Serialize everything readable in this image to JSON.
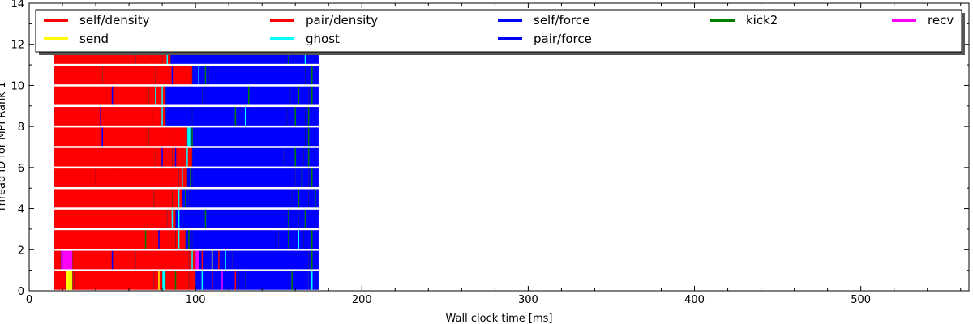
{
  "chart_data": {
    "type": "bar",
    "orientation": "horizontal-timeline",
    "xlabel": "Wall clock time [ms]",
    "ylabel": "Thread ID for MPI Rank 1",
    "xlim": [
      0,
      565
    ],
    "ylim": [
      0,
      14
    ],
    "x_ticks": [
      "0",
      "100",
      "200",
      "300",
      "400",
      "500"
    ],
    "y_ticks": [
      "0",
      "2",
      "4",
      "6",
      "8",
      "10",
      "12",
      "14"
    ],
    "legend_position": "top",
    "legend": [
      {
        "label": "self/density",
        "color": "#ff0000"
      },
      {
        "label": "pair/density",
        "color": "#ff0000"
      },
      {
        "label": "self/force",
        "color": "#0000ff"
      },
      {
        "label": "kick2",
        "color": "#008000"
      },
      {
        "label": "recv",
        "color": "#ff00ff"
      },
      {
        "label": "send",
        "color": "#ffff00"
      },
      {
        "label": "ghost",
        "color": "#00ffff"
      },
      {
        "label": "pair/force",
        "color": "#0000ff"
      }
    ],
    "colors": {
      "red": "#ff0000",
      "blue": "#0000ff",
      "green": "#008000",
      "cyan": "#00ffff",
      "yellow": "#ffff00",
      "magenta": "#ff00ff"
    },
    "threads": [
      {
        "id": 0,
        "segments": [
          [
            15,
            22,
            "red"
          ],
          [
            22,
            26,
            "yellow"
          ],
          [
            26,
            27,
            "red"
          ],
          [
            27,
            75,
            "red"
          ],
          [
            75,
            80,
            "red"
          ],
          [
            80,
            82,
            "cyan"
          ],
          [
            82,
            96,
            "red"
          ],
          [
            96,
            100,
            "red"
          ],
          [
            100,
            126,
            "blue"
          ],
          [
            126,
            130,
            "blue"
          ],
          [
            130,
            158,
            "blue"
          ],
          [
            158,
            168,
            "blue"
          ],
          [
            168,
            174,
            "blue"
          ]
        ]
      },
      {
        "id": 1,
        "segments": [
          [
            15,
            19,
            "red"
          ],
          [
            19,
            20,
            "magenta"
          ],
          [
            20,
            26,
            "magenta"
          ],
          [
            26,
            50,
            "red"
          ],
          [
            50,
            64,
            "red"
          ],
          [
            64,
            96,
            "red"
          ],
          [
            96,
            100,
            "red"
          ],
          [
            100,
            102,
            "magenta"
          ],
          [
            102,
            122,
            "blue"
          ],
          [
            122,
            168,
            "blue"
          ],
          [
            168,
            174,
            "blue"
          ]
        ]
      },
      {
        "id": 2,
        "segments": [
          [
            15,
            66,
            "red"
          ],
          [
            66,
            88,
            "red"
          ],
          [
            88,
            94,
            "red"
          ],
          [
            94,
            98,
            "blue"
          ],
          [
            98,
            150,
            "blue"
          ],
          [
            150,
            165,
            "blue"
          ],
          [
            165,
            174,
            "blue"
          ]
        ]
      },
      {
        "id": 3,
        "segments": [
          [
            15,
            83,
            "red"
          ],
          [
            83,
            88,
            "red"
          ],
          [
            88,
            92,
            "blue"
          ],
          [
            92,
            106,
            "blue"
          ],
          [
            106,
            154,
            "blue"
          ],
          [
            154,
            162,
            "blue"
          ],
          [
            162,
            174,
            "blue"
          ]
        ]
      },
      {
        "id": 4,
        "segments": [
          [
            15,
            75,
            "red"
          ],
          [
            75,
            86,
            "red"
          ],
          [
            86,
            92,
            "red"
          ],
          [
            92,
            96,
            "blue"
          ],
          [
            96,
            158,
            "blue"
          ],
          [
            158,
            168,
            "blue"
          ],
          [
            168,
            174,
            "blue"
          ]
        ]
      },
      {
        "id": 5,
        "segments": [
          [
            15,
            40,
            "red"
          ],
          [
            40,
            53,
            "red"
          ],
          [
            53,
            90,
            "red"
          ],
          [
            90,
            95,
            "red"
          ],
          [
            95,
            98,
            "blue"
          ],
          [
            98,
            160,
            "blue"
          ],
          [
            160,
            168,
            "blue"
          ],
          [
            168,
            174,
            "blue"
          ]
        ]
      },
      {
        "id": 6,
        "segments": [
          [
            15,
            76,
            "red"
          ],
          [
            76,
            86,
            "red"
          ],
          [
            86,
            92,
            "red"
          ],
          [
            92,
            98,
            "red"
          ],
          [
            98,
            153,
            "blue"
          ],
          [
            153,
            165,
            "blue"
          ],
          [
            165,
            174,
            "blue"
          ]
        ]
      },
      {
        "id": 7,
        "segments": [
          [
            15,
            44,
            "red"
          ],
          [
            44,
            72,
            "red"
          ],
          [
            72,
            84,
            "red"
          ],
          [
            84,
            95,
            "red"
          ],
          [
            95,
            97,
            "cyan"
          ],
          [
            97,
            166,
            "blue"
          ],
          [
            166,
            174,
            "blue"
          ]
        ]
      },
      {
        "id": 8,
        "segments": [
          [
            15,
            43,
            "red"
          ],
          [
            43,
            74,
            "red"
          ],
          [
            74,
            82,
            "red"
          ],
          [
            82,
            98,
            "blue"
          ],
          [
            98,
            155,
            "blue"
          ],
          [
            155,
            166,
            "blue"
          ],
          [
            166,
            174,
            "blue"
          ]
        ]
      },
      {
        "id": 9,
        "segments": [
          [
            15,
            48,
            "red"
          ],
          [
            48,
            72,
            "red"
          ],
          [
            72,
            82,
            "red"
          ],
          [
            82,
            104,
            "blue"
          ],
          [
            104,
            157,
            "blue"
          ],
          [
            157,
            168,
            "blue"
          ],
          [
            168,
            174,
            "blue"
          ]
        ]
      },
      {
        "id": 10,
        "segments": [
          [
            15,
            44,
            "red"
          ],
          [
            44,
            76,
            "red"
          ],
          [
            76,
            84,
            "red"
          ],
          [
            84,
            98,
            "red"
          ],
          [
            98,
            108,
            "blue"
          ],
          [
            108,
            166,
            "blue"
          ],
          [
            166,
            174,
            "blue"
          ]
        ]
      },
      {
        "id": 11,
        "segments": [
          [
            15,
            64,
            "red"
          ],
          [
            64,
            80,
            "red"
          ],
          [
            80,
            85,
            "red"
          ],
          [
            85,
            128,
            "blue"
          ],
          [
            128,
            154,
            "blue"
          ],
          [
            154,
            166,
            "blue"
          ],
          [
            166,
            174,
            "blue"
          ]
        ]
      }
    ],
    "markers": [
      {
        "thread": 0,
        "x": 78,
        "color": "yellow"
      },
      {
        "thread": 0,
        "x": 88,
        "color": "green"
      },
      {
        "thread": 0,
        "x": 104,
        "color": "cyan"
      },
      {
        "thread": 0,
        "x": 110,
        "color": "red"
      },
      {
        "thread": 0,
        "x": 116,
        "color": "magenta"
      },
      {
        "thread": 0,
        "x": 124,
        "color": "red"
      },
      {
        "thread": 0,
        "x": 158,
        "color": "green"
      },
      {
        "thread": 0,
        "x": 170,
        "color": "cyan"
      },
      {
        "thread": 1,
        "x": 50,
        "color": "blue"
      },
      {
        "thread": 1,
        "x": 98,
        "color": "cyan"
      },
      {
        "thread": 1,
        "x": 104,
        "color": "red"
      },
      {
        "thread": 1,
        "x": 110,
        "color": "yellow"
      },
      {
        "thread": 1,
        "x": 114,
        "color": "red"
      },
      {
        "thread": 1,
        "x": 118,
        "color": "cyan"
      },
      {
        "thread": 1,
        "x": 170,
        "color": "green"
      },
      {
        "thread": 2,
        "x": 70,
        "color": "green"
      },
      {
        "thread": 2,
        "x": 78,
        "color": "blue"
      },
      {
        "thread": 2,
        "x": 90,
        "color": "cyan"
      },
      {
        "thread": 2,
        "x": 96,
        "color": "green"
      },
      {
        "thread": 2,
        "x": 156,
        "color": "green"
      },
      {
        "thread": 2,
        "x": 162,
        "color": "cyan"
      },
      {
        "thread": 2,
        "x": 170,
        "color": "green"
      },
      {
        "thread": 3,
        "x": 86,
        "color": "cyan"
      },
      {
        "thread": 3,
        "x": 90,
        "color": "cyan"
      },
      {
        "thread": 3,
        "x": 106,
        "color": "green"
      },
      {
        "thread": 3,
        "x": 156,
        "color": "green"
      },
      {
        "thread": 3,
        "x": 166,
        "color": "green"
      },
      {
        "thread": 4,
        "x": 90,
        "color": "cyan"
      },
      {
        "thread": 4,
        "x": 94,
        "color": "green"
      },
      {
        "thread": 4,
        "x": 162,
        "color": "green"
      },
      {
        "thread": 4,
        "x": 172,
        "color": "green"
      },
      {
        "thread": 5,
        "x": 53,
        "color": "red"
      },
      {
        "thread": 5,
        "x": 92,
        "color": "cyan"
      },
      {
        "thread": 5,
        "x": 97,
        "color": "green"
      },
      {
        "thread": 5,
        "x": 164,
        "color": "green"
      },
      {
        "thread": 5,
        "x": 170,
        "color": "green"
      },
      {
        "thread": 6,
        "x": 80,
        "color": "blue"
      },
      {
        "thread": 6,
        "x": 88,
        "color": "blue"
      },
      {
        "thread": 6,
        "x": 95,
        "color": "cyan"
      },
      {
        "thread": 6,
        "x": 160,
        "color": "green"
      },
      {
        "thread": 6,
        "x": 168,
        "color": "green"
      },
      {
        "thread": 7,
        "x": 44,
        "color": "blue"
      },
      {
        "thread": 7,
        "x": 98,
        "color": "green"
      },
      {
        "thread": 7,
        "x": 168,
        "color": "green"
      },
      {
        "thread": 8,
        "x": 43,
        "color": "blue"
      },
      {
        "thread": 8,
        "x": 80,
        "color": "cyan"
      },
      {
        "thread": 8,
        "x": 124,
        "color": "green"
      },
      {
        "thread": 8,
        "x": 130,
        "color": "cyan"
      },
      {
        "thread": 8,
        "x": 160,
        "color": "green"
      },
      {
        "thread": 8,
        "x": 168,
        "color": "green"
      },
      {
        "thread": 9,
        "x": 50,
        "color": "blue"
      },
      {
        "thread": 9,
        "x": 76,
        "color": "cyan"
      },
      {
        "thread": 9,
        "x": 80,
        "color": "cyan"
      },
      {
        "thread": 9,
        "x": 132,
        "color": "green"
      },
      {
        "thread": 9,
        "x": 162,
        "color": "green"
      },
      {
        "thread": 9,
        "x": 170,
        "color": "green"
      },
      {
        "thread": 10,
        "x": 86,
        "color": "blue"
      },
      {
        "thread": 10,
        "x": 102,
        "color": "cyan"
      },
      {
        "thread": 10,
        "x": 106,
        "color": "green"
      },
      {
        "thread": 10,
        "x": 170,
        "color": "green"
      },
      {
        "thread": 11,
        "x": 70,
        "color": "red"
      },
      {
        "thread": 11,
        "x": 83,
        "color": "cyan"
      },
      {
        "thread": 11,
        "x": 156,
        "color": "green"
      },
      {
        "thread": 11,
        "x": 166,
        "color": "cyan"
      }
    ]
  }
}
